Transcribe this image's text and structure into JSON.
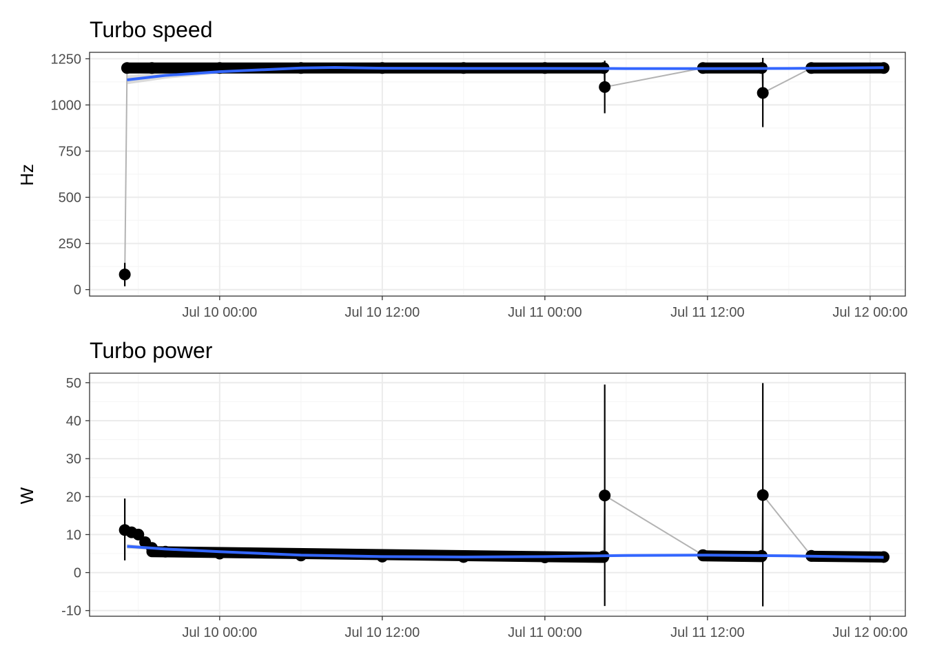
{
  "chart_data": [
    {
      "type": "scatter",
      "title": "Turbo speed",
      "xlabel": "",
      "ylabel": "Hz",
      "x_type": "datetime",
      "xlim": [
        "2024-07-09 14:24",
        "2024-07-12 02:36"
      ],
      "ylim": [
        -35,
        1285
      ],
      "xtick_values": [
        "2024-07-10 00:00",
        "2024-07-10 12:00",
        "2024-07-11 00:00",
        "2024-07-11 12:00",
        "2024-07-12 00:00"
      ],
      "xtick_labels": [
        "Jul 10 00:00",
        "Jul 10 12:00",
        "Jul 11 00:00",
        "Jul 11 12:00",
        "Jul 12 00:00"
      ],
      "ytick_values": [
        0,
        250,
        500,
        750,
        1000,
        1250
      ],
      "ytick_labels": [
        "0",
        "250",
        "500",
        "750",
        "1000",
        "1250"
      ],
      "grid": true,
      "colors": {
        "points": "#000000",
        "connector": "#b3b3b3",
        "smooth": "#3366ff",
        "band": "#bdbdbd",
        "grid_major": "#ebebeb",
        "grid_minor": "#f5f5f5",
        "panel_border": "#333333"
      },
      "series": [
        {
          "type": "line_with_errorbars",
          "points": [
            {
              "x": "2024-07-09 17:00",
              "y": 82,
              "ymin": 18,
              "ymax": 145
            },
            {
              "x": "2024-07-09 17:10",
              "y": 1200,
              "ymin": 1185,
              "ymax": 1215
            },
            {
              "x": "2024-07-09 19:00",
              "y": 1200,
              "ymin": 1185,
              "ymax": 1215
            },
            {
              "x": "2024-07-10 00:00",
              "y": 1200,
              "ymin": 1185,
              "ymax": 1215
            },
            {
              "x": "2024-07-10 06:00",
              "y": 1200,
              "ymin": 1185,
              "ymax": 1215
            },
            {
              "x": "2024-07-10 12:00",
              "y": 1200,
              "ymin": 1185,
              "ymax": 1215
            },
            {
              "x": "2024-07-10 18:00",
              "y": 1200,
              "ymin": 1185,
              "ymax": 1215
            },
            {
              "x": "2024-07-11 00:00",
              "y": 1200,
              "ymin": 1185,
              "ymax": 1215
            },
            {
              "x": "2024-07-11 04:20",
              "y": 1200,
              "ymin": 1185,
              "ymax": 1215
            },
            {
              "x": "2024-07-11 04:25",
              "y": 1097,
              "ymin": 955,
              "ymax": 1240
            },
            {
              "x": "2024-07-11 11:40",
              "y": 1200,
              "ymin": 1185,
              "ymax": 1215
            },
            {
              "x": "2024-07-11 16:00",
              "y": 1200,
              "ymin": 1185,
              "ymax": 1215
            },
            {
              "x": "2024-07-11 16:05",
              "y": 1065,
              "ymin": 880,
              "ymax": 1255
            },
            {
              "x": "2024-07-11 19:40",
              "y": 1200,
              "ymin": 1185,
              "ymax": 1215
            },
            {
              "x": "2024-07-12 01:00",
              "y": 1200,
              "ymin": 1185,
              "ymax": 1215
            }
          ],
          "dense_segments": [
            {
              "x_start": "2024-07-09 17:10",
              "x_end": "2024-07-11 04:20",
              "y": 1200
            },
            {
              "x_start": "2024-07-11 11:40",
              "x_end": "2024-07-11 16:00",
              "y": 1200
            },
            {
              "x_start": "2024-07-11 19:40",
              "x_end": "2024-07-12 01:00",
              "y": 1200
            }
          ]
        },
        {
          "type": "smooth",
          "x": [
            "2024-07-09 17:10",
            "2024-07-09 20:00",
            "2024-07-10 00:00",
            "2024-07-10 06:00",
            "2024-07-10 08:30",
            "2024-07-10 12:00",
            "2024-07-10 18:00",
            "2024-07-11 00:00",
            "2024-07-11 06:00",
            "2024-07-11 12:00",
            "2024-07-11 18:00",
            "2024-07-12 01:00"
          ],
          "y": [
            1136,
            1160,
            1180,
            1200,
            1203,
            1199,
            1198,
            1198,
            1197,
            1197,
            1198,
            1202
          ],
          "band_lower": [
            1112,
            1142,
            1170,
            1193,
            1197,
            1195,
            1195,
            1195,
            1193,
            1193,
            1194,
            1190
          ],
          "band_upper": [
            1160,
            1178,
            1190,
            1207,
            1209,
            1203,
            1201,
            1201,
            1201,
            1201,
            1202,
            1214
          ]
        }
      ]
    },
    {
      "type": "scatter",
      "title": "Turbo power",
      "xlabel": "",
      "ylabel": "W",
      "x_type": "datetime",
      "xlim": [
        "2024-07-09 14:24",
        "2024-07-12 02:36"
      ],
      "ylim": [
        -11.5,
        52.5
      ],
      "xtick_values": [
        "2024-07-10 00:00",
        "2024-07-10 12:00",
        "2024-07-11 00:00",
        "2024-07-11 12:00",
        "2024-07-12 00:00"
      ],
      "xtick_labels": [
        "Jul 10 00:00",
        "Jul 10 12:00",
        "Jul 11 00:00",
        "Jul 11 12:00",
        "Jul 12 00:00"
      ],
      "ytick_values": [
        -10,
        0,
        10,
        20,
        30,
        40,
        50
      ],
      "ytick_labels": [
        "-10",
        "0",
        "10",
        "20",
        "30",
        "40",
        "50"
      ],
      "grid": true,
      "colors": {
        "points": "#000000",
        "connector": "#b3b3b3",
        "smooth": "#3366ff",
        "band": "#bdbdbd",
        "grid_major": "#ebebeb",
        "grid_minor": "#f5f5f5",
        "panel_border": "#333333"
      },
      "series": [
        {
          "type": "line_with_errorbars",
          "points": [
            {
              "x": "2024-07-09 17:00",
              "y": 11.2,
              "ymin": 3.2,
              "ymax": 19.5
            },
            {
              "x": "2024-07-09 17:30",
              "y": 10.6,
              "ymin": 9.6,
              "ymax": 11.6
            },
            {
              "x": "2024-07-09 18:00",
              "y": 10.0,
              "ymin": 9.0,
              "ymax": 11.0
            },
            {
              "x": "2024-07-09 18:30",
              "y": 8.0,
              "ymin": 7.0,
              "ymax": 9.0
            },
            {
              "x": "2024-07-09 19:00",
              "y": 6.5,
              "ymin": 5.5,
              "ymax": 7.5
            },
            {
              "x": "2024-07-09 20:00",
              "y": 5.5,
              "ymin": 4.5,
              "ymax": 6.5
            },
            {
              "x": "2024-07-10 00:00",
              "y": 5.0,
              "ymin": 4.0,
              "ymax": 6.0
            },
            {
              "x": "2024-07-10 06:00",
              "y": 4.5,
              "ymin": 3.5,
              "ymax": 5.5
            },
            {
              "x": "2024-07-10 12:00",
              "y": 4.2,
              "ymin": 3.2,
              "ymax": 5.2
            },
            {
              "x": "2024-07-10 18:00",
              "y": 4.1,
              "ymin": 3.1,
              "ymax": 5.1
            },
            {
              "x": "2024-07-11 00:00",
              "y": 4.0,
              "ymin": 3.0,
              "ymax": 5.0
            },
            {
              "x": "2024-07-11 04:20",
              "y": 4.3,
              "ymin": 3.3,
              "ymax": 5.3
            },
            {
              "x": "2024-07-11 04:25",
              "y": 20.3,
              "ymin": -8.8,
              "ymax": 49.5
            },
            {
              "x": "2024-07-11 11:40",
              "y": 4.6,
              "ymin": 3.6,
              "ymax": 5.6
            },
            {
              "x": "2024-07-11 16:00",
              "y": 4.4,
              "ymin": 3.4,
              "ymax": 5.4
            },
            {
              "x": "2024-07-11 16:05",
              "y": 20.4,
              "ymin": -8.9,
              "ymax": 49.9
            },
            {
              "x": "2024-07-11 19:40",
              "y": 4.4,
              "ymin": 3.4,
              "ymax": 5.4
            },
            {
              "x": "2024-07-12 01:00",
              "y": 4.1,
              "ymin": 3.1,
              "ymax": 5.1
            }
          ],
          "dense_segments": [
            {
              "x_start": "2024-07-09 19:00",
              "x_end": "2024-07-11 04:20",
              "y_start": 5.5,
              "y_end": 4.0
            },
            {
              "x_start": "2024-07-11 11:40",
              "x_end": "2024-07-11 16:00",
              "y_start": 4.4,
              "y_end": 4.2
            },
            {
              "x_start": "2024-07-11 19:40",
              "x_end": "2024-07-12 01:00",
              "y_start": 4.3,
              "y_end": 4.1
            }
          ]
        },
        {
          "type": "smooth",
          "x": [
            "2024-07-09 17:10",
            "2024-07-09 20:00",
            "2024-07-10 00:00",
            "2024-07-10 06:00",
            "2024-07-10 12:00",
            "2024-07-10 18:00",
            "2024-07-11 00:00",
            "2024-07-11 06:00",
            "2024-07-11 12:00",
            "2024-07-11 18:00",
            "2024-07-12 01:00"
          ],
          "y": [
            6.9,
            6.2,
            5.5,
            4.6,
            4.2,
            4.1,
            4.2,
            4.5,
            4.6,
            4.4,
            4.0
          ],
          "band_lower": [
            6.3,
            5.8,
            5.2,
            4.4,
            4.0,
            3.9,
            4.0,
            4.2,
            4.3,
            4.1,
            3.5
          ],
          "band_upper": [
            7.5,
            6.6,
            5.8,
            4.8,
            4.4,
            4.3,
            4.4,
            4.8,
            4.9,
            4.7,
            4.5
          ]
        }
      ]
    }
  ]
}
